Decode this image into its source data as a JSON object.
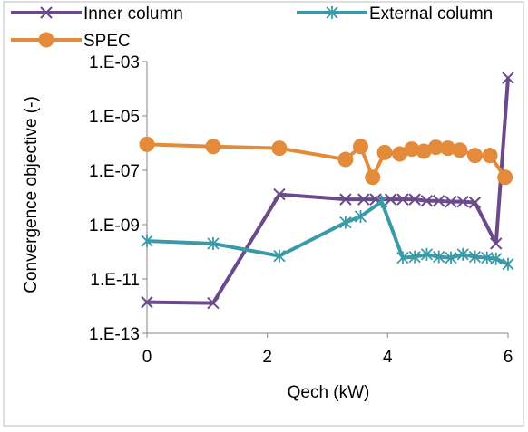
{
  "chart_data": {
    "type": "line",
    "xlabel": "Qech (kW)",
    "ylabel": "Convergence objective (-)",
    "xlim": [
      0,
      6
    ],
    "x_ticks": [
      0,
      2,
      4,
      6
    ],
    "y_scale": "log",
    "ylim": [
      1e-13,
      0.001
    ],
    "y_ticks": [
      1e-13,
      1e-11,
      1e-09,
      1e-07,
      1e-05,
      0.001
    ],
    "y_tick_labels": [
      "1.E-13",
      "1.E-11",
      "1.E-09",
      "1.E-07",
      "1.E-05",
      "1.E-03"
    ],
    "grid": false,
    "legend_position": "top",
    "series": [
      {
        "name": "Inner column",
        "color": "#6b4a8c",
        "marker": "x",
        "points": [
          [
            0,
            1.4e-12
          ],
          [
            1.1,
            1.3e-12
          ],
          [
            2.2,
            1.3e-08
          ],
          [
            3.3,
            8.5e-09
          ],
          [
            3.6,
            8.5e-09
          ],
          [
            3.8,
            8.5e-09
          ],
          [
            4.05,
            8.5e-09
          ],
          [
            4.25,
            8.5e-09
          ],
          [
            4.45,
            8.5e-09
          ],
          [
            4.65,
            7.5e-09
          ],
          [
            4.85,
            7.5e-09
          ],
          [
            5.05,
            7e-09
          ],
          [
            5.25,
            7e-09
          ],
          [
            5.45,
            6.5e-09
          ],
          [
            5.8,
            2e-10
          ],
          [
            6.0,
            0.00025
          ]
        ]
      },
      {
        "name": "External column",
        "color": "#3a9aa8",
        "marker": "*",
        "points": [
          [
            0,
            2.5e-10
          ],
          [
            1.1,
            2e-10
          ],
          [
            2.2,
            7e-11
          ],
          [
            3.3,
            1.2e-09
          ],
          [
            3.55,
            2e-09
          ],
          [
            3.9,
            7e-09
          ],
          [
            4.25,
            6e-11
          ],
          [
            4.45,
            6.5e-11
          ],
          [
            4.65,
            8e-11
          ],
          [
            4.85,
            6.5e-11
          ],
          [
            5.05,
            6e-11
          ],
          [
            5.25,
            8e-11
          ],
          [
            5.45,
            6.5e-11
          ],
          [
            5.65,
            6e-11
          ],
          [
            5.8,
            5.5e-11
          ],
          [
            6.0,
            3.5e-11
          ]
        ]
      },
      {
        "name": "SPEC",
        "color": "#e38b3a",
        "marker": "o",
        "points": [
          [
            0,
            9e-07
          ],
          [
            1.1,
            7.5e-07
          ],
          [
            2.2,
            6.5e-07
          ],
          [
            3.3,
            2.5e-07
          ],
          [
            3.55,
            7.5e-07
          ],
          [
            3.75,
            5.5e-08
          ],
          [
            3.95,
            4.5e-07
          ],
          [
            4.2,
            4e-07
          ],
          [
            4.4,
            6e-07
          ],
          [
            4.6,
            5e-07
          ],
          [
            4.8,
            7e-07
          ],
          [
            5.0,
            6.5e-07
          ],
          [
            5.2,
            5.5e-07
          ],
          [
            5.45,
            3.5e-07
          ],
          [
            5.7,
            3.5e-07
          ],
          [
            5.95,
            5.5e-08
          ]
        ]
      }
    ]
  }
}
